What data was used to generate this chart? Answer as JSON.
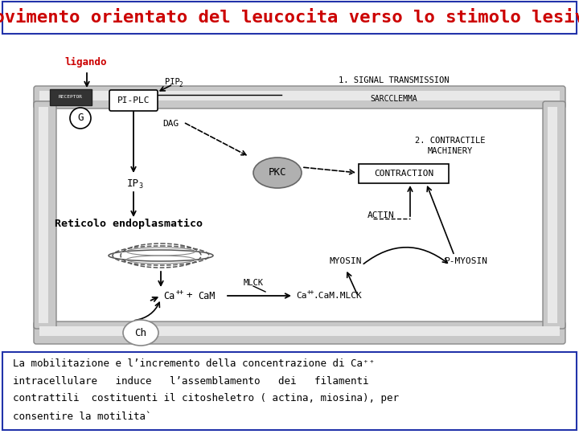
{
  "title": "Movimento orientato del leucocita verso lo stimolo lesivo",
  "title_color": "#cc0000",
  "title_fontsize": 16,
  "title_font": "monospace",
  "ligando_label": "ligando",
  "ligando_color": "#cc0000",
  "reticolo_label": "Reticolo endoplasmatico",
  "bottom_text_line1": "La mobilitazione e l’incremento della concentrazione di Ca⁺⁺",
  "bottom_text_line2": "intracellulare   induce   l’assemblamento   dei   filamenti",
  "bottom_text_line3": "contrattili  costituenti il citosheletro ( actina, miosina), per",
  "bottom_text_line4": "consentire la motilità",
  "bg_color": "#ffffff",
  "border_color": "#2233aa",
  "diagram_bg": "#f0f0f0"
}
